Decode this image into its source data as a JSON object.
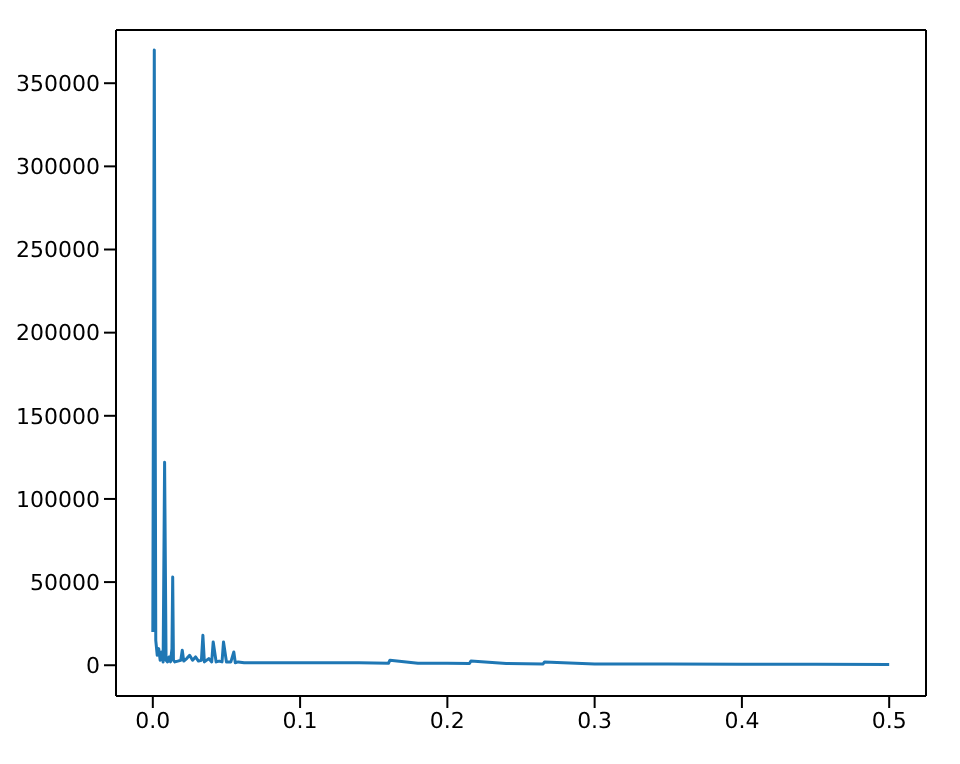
{
  "chart_data": {
    "type": "line",
    "x": [
      0,
      0.001,
      0.002,
      0.003,
      0.004,
      0.005,
      0.006,
      0.007,
      0.008,
      0.009,
      0.01,
      0.011,
      0.012,
      0.013,
      0.0135,
      0.014,
      0.015,
      0.017,
      0.019,
      0.02,
      0.021,
      0.023,
      0.025,
      0.027,
      0.029,
      0.031,
      0.033,
      0.034,
      0.035,
      0.038,
      0.04,
      0.041,
      0.043,
      0.045,
      0.047,
      0.048,
      0.05,
      0.053,
      0.055,
      0.056,
      0.058,
      0.062,
      0.07,
      0.08,
      0.09,
      0.1,
      0.12,
      0.14,
      0.16,
      0.161,
      0.18,
      0.2,
      0.215,
      0.216,
      0.24,
      0.265,
      0.266,
      0.3,
      0.35,
      0.4,
      0.45,
      0.5
    ],
    "series": [
      {
        "color": "#1f77b4",
        "values": [
          20000,
          370000,
          15000,
          6000,
          10000,
          3000,
          8000,
          2000,
          122000,
          3000,
          2000,
          5000,
          2000,
          10000,
          53000,
          3000,
          2000,
          2500,
          3000,
          9000,
          2500,
          4000,
          6000,
          3000,
          5000,
          2500,
          3000,
          18000,
          2000,
          4000,
          2000,
          14000,
          2000,
          2500,
          2000,
          14000,
          2000,
          2000,
          8000,
          1500,
          2000,
          1500,
          1500,
          1500,
          1500,
          1500,
          1500,
          1500,
          1200,
          3000,
          1200,
          1200,
          1000,
          2500,
          1000,
          800,
          2000,
          800,
          800,
          600,
          600,
          500
        ]
      }
    ],
    "xlim": [
      -0.025,
      0.525
    ],
    "ylim": [
      -18500,
      382000
    ],
    "xticks": [
      {
        "value": 0,
        "label": "0.0"
      },
      0.1,
      0.2,
      0.3,
      0.4,
      0.5
    ],
    "yticks": [
      0,
      50000,
      100000,
      150000,
      200000,
      250000,
      300000,
      350000
    ]
  }
}
